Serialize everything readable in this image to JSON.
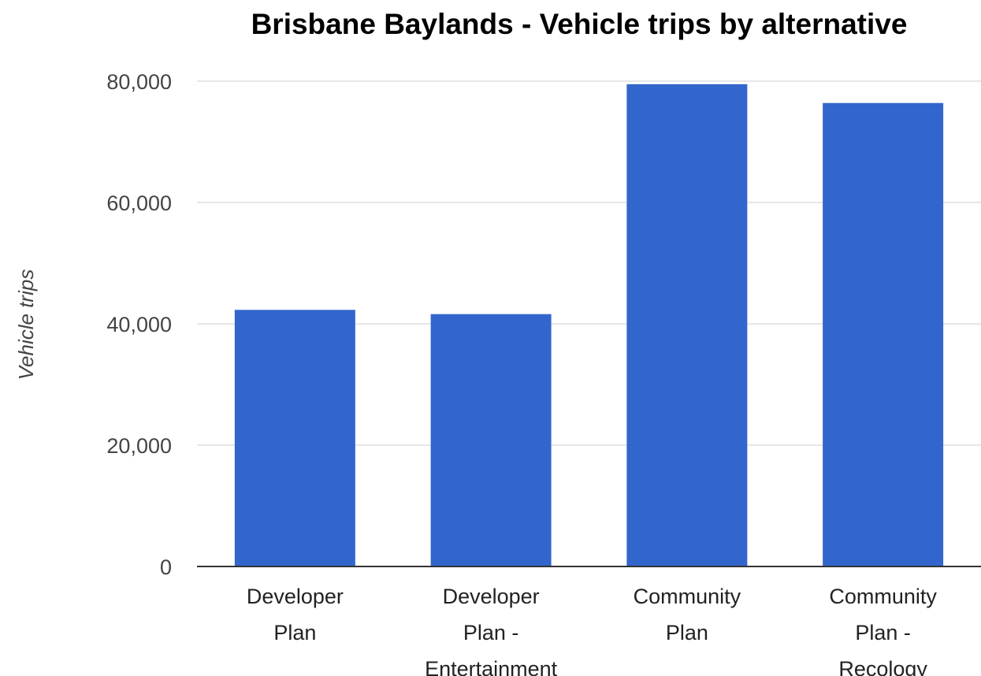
{
  "chart_data": {
    "type": "bar",
    "title": "Brisbane Baylands - Vehicle trips by alternative",
    "xlabel": "",
    "ylabel": "Vehicle trips",
    "categories": [
      [
        "Developer",
        "Plan"
      ],
      [
        "Developer",
        "Plan -",
        "Entertainment"
      ],
      [
        "Community",
        "Plan"
      ],
      [
        "Community",
        "Plan -",
        "Recology"
      ]
    ],
    "values": [
      42300,
      41600,
      79500,
      76400
    ],
    "ylim": [
      0,
      80000
    ],
    "yticks": [
      0,
      20000,
      40000,
      60000,
      80000
    ],
    "ytick_labels": [
      "0",
      "20,000",
      "40,000",
      "60,000",
      "80,000"
    ],
    "grid": true,
    "legend": "none",
    "bar_color": "#3366cc"
  }
}
